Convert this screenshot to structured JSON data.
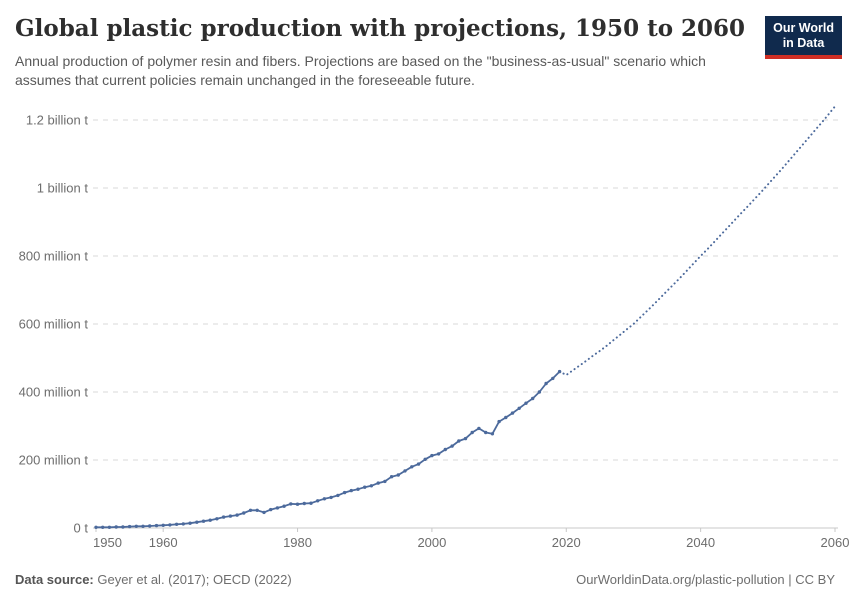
{
  "header": {
    "title": "Global plastic production with projections, 1950 to 2060",
    "subtitle": "Annual production of polymer resin and fibers. Projections are based on the \"business-as-usual\" scenario which assumes that current policies remain unchanged in the foreseeable future.",
    "logo": {
      "line1": "Our World",
      "line2": "in Data",
      "bg_color": "#102a4d",
      "accent_color": "#cf2e24"
    }
  },
  "footer": {
    "source_label": "Data source:",
    "source_text": " Geyer et al. (2017); OECD (2022)",
    "link_text": "OurWorldinData.org/plastic-pollution | CC BY"
  },
  "chart_data": {
    "type": "line",
    "title": "Global plastic production with projections, 1950 to 2060",
    "xlabel": "",
    "ylabel": "",
    "unit": "million tonnes",
    "xlim": [
      1950,
      2060
    ],
    "ylim": [
      0,
      1200
    ],
    "grid": true,
    "legend_position": "none",
    "colors": {
      "line": "#4c6a9c",
      "gridline": "#d8d8d8",
      "axis": "#c8c8c8",
      "tick_text": "#6d6d6d"
    },
    "yticks": [
      {
        "value": 0,
        "label": "0 t"
      },
      {
        "value": 200,
        "label": "200 million t"
      },
      {
        "value": 400,
        "label": "400 million t"
      },
      {
        "value": 600,
        "label": "600 million t"
      },
      {
        "value": 800,
        "label": "800 million t"
      },
      {
        "value": 1000,
        "label": "1 billion t"
      },
      {
        "value": 1200,
        "label": "1.2 billion t"
      }
    ],
    "xticks": [
      1950,
      1960,
      1980,
      2000,
      2020,
      2040,
      2060
    ],
    "series": [
      {
        "name": "Observed annual production",
        "style": "solid",
        "markers": true,
        "x": [
          1950,
          1951,
          1952,
          1953,
          1954,
          1955,
          1956,
          1957,
          1958,
          1959,
          1960,
          1961,
          1962,
          1963,
          1964,
          1965,
          1966,
          1967,
          1968,
          1969,
          1970,
          1971,
          1972,
          1973,
          1974,
          1975,
          1976,
          1977,
          1978,
          1979,
          1980,
          1981,
          1982,
          1983,
          1984,
          1985,
          1986,
          1987,
          1988,
          1989,
          1990,
          1991,
          1992,
          1993,
          1994,
          1995,
          1996,
          1997,
          1998,
          1999,
          2000,
          2001,
          2002,
          2003,
          2004,
          2005,
          2006,
          2007,
          2008,
          2009,
          2010,
          2011,
          2012,
          2013,
          2014,
          2015,
          2016,
          2017,
          2018,
          2019
        ],
        "values": [
          2,
          2,
          2,
          3,
          3,
          4,
          5,
          5,
          6,
          7,
          8,
          9,
          11,
          12,
          14,
          17,
          20,
          23,
          27,
          32,
          35,
          38,
          44,
          52,
          52,
          46,
          54,
          59,
          64,
          71,
          70,
          72,
          73,
          80,
          86,
          90,
          96,
          104,
          110,
          114,
          120,
          124,
          132,
          137,
          151,
          156,
          168,
          180,
          188,
          202,
          213,
          218,
          231,
          241,
          256,
          263,
          281,
          293,
          281,
          277,
          313,
          325,
          338,
          352,
          367,
          381,
          400,
          425,
          440,
          460
        ]
      },
      {
        "name": "Projection (business-as-usual scenario)",
        "style": "dotted",
        "markers": false,
        "x": [
          2019,
          2020,
          2021,
          2022,
          2023,
          2024,
          2025,
          2026,
          2027,
          2028,
          2029,
          2030,
          2031,
          2032,
          2033,
          2034,
          2035,
          2036,
          2037,
          2038,
          2039,
          2040,
          2041,
          2042,
          2043,
          2044,
          2045,
          2046,
          2047,
          2048,
          2049,
          2050,
          2051,
          2052,
          2053,
          2054,
          2055,
          2056,
          2057,
          2058,
          2059,
          2060
        ],
        "values": [
          460,
          450,
          464,
          478,
          492,
          507,
          521,
          536,
          552,
          568,
          584,
          600,
          619,
          638,
          657,
          677,
          697,
          717,
          737,
          758,
          779,
          800,
          820,
          841,
          862,
          883,
          904,
          925,
          946,
          967,
          988,
          1010,
          1032,
          1054,
          1077,
          1100,
          1123,
          1146,
          1169,
          1192,
          1216,
          1240
        ]
      }
    ]
  }
}
